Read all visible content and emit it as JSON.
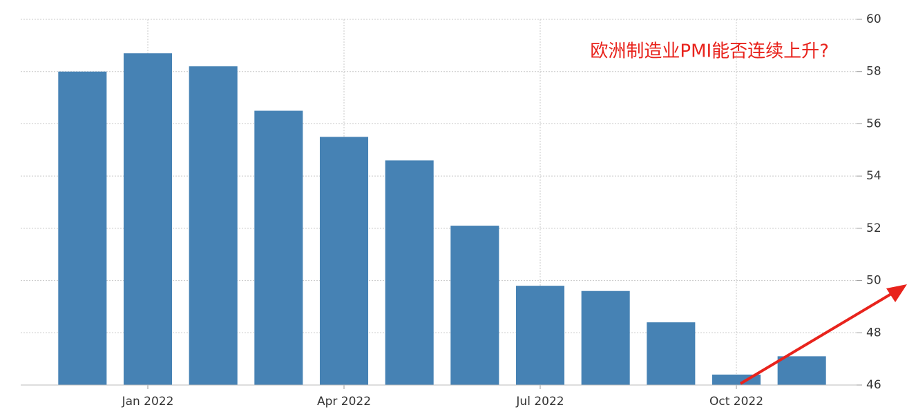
{
  "chart_data": {
    "type": "bar",
    "annotation": "欧洲制造业PMI能否连续上升?",
    "categories": [
      null,
      "Jan 2022",
      null,
      null,
      "Apr 2022",
      null,
      null,
      "Jul 2022",
      null,
      null,
      "Oct 2022",
      null
    ],
    "values": [
      58.0,
      58.7,
      58.2,
      56.5,
      55.5,
      54.6,
      52.1,
      49.8,
      49.6,
      48.4,
      46.4,
      47.1
    ],
    "color": "#4682b4",
    "ylim": [
      46,
      60
    ],
    "yticks": [
      46,
      48,
      50,
      52,
      54,
      56,
      58,
      60
    ],
    "grid": true
  }
}
